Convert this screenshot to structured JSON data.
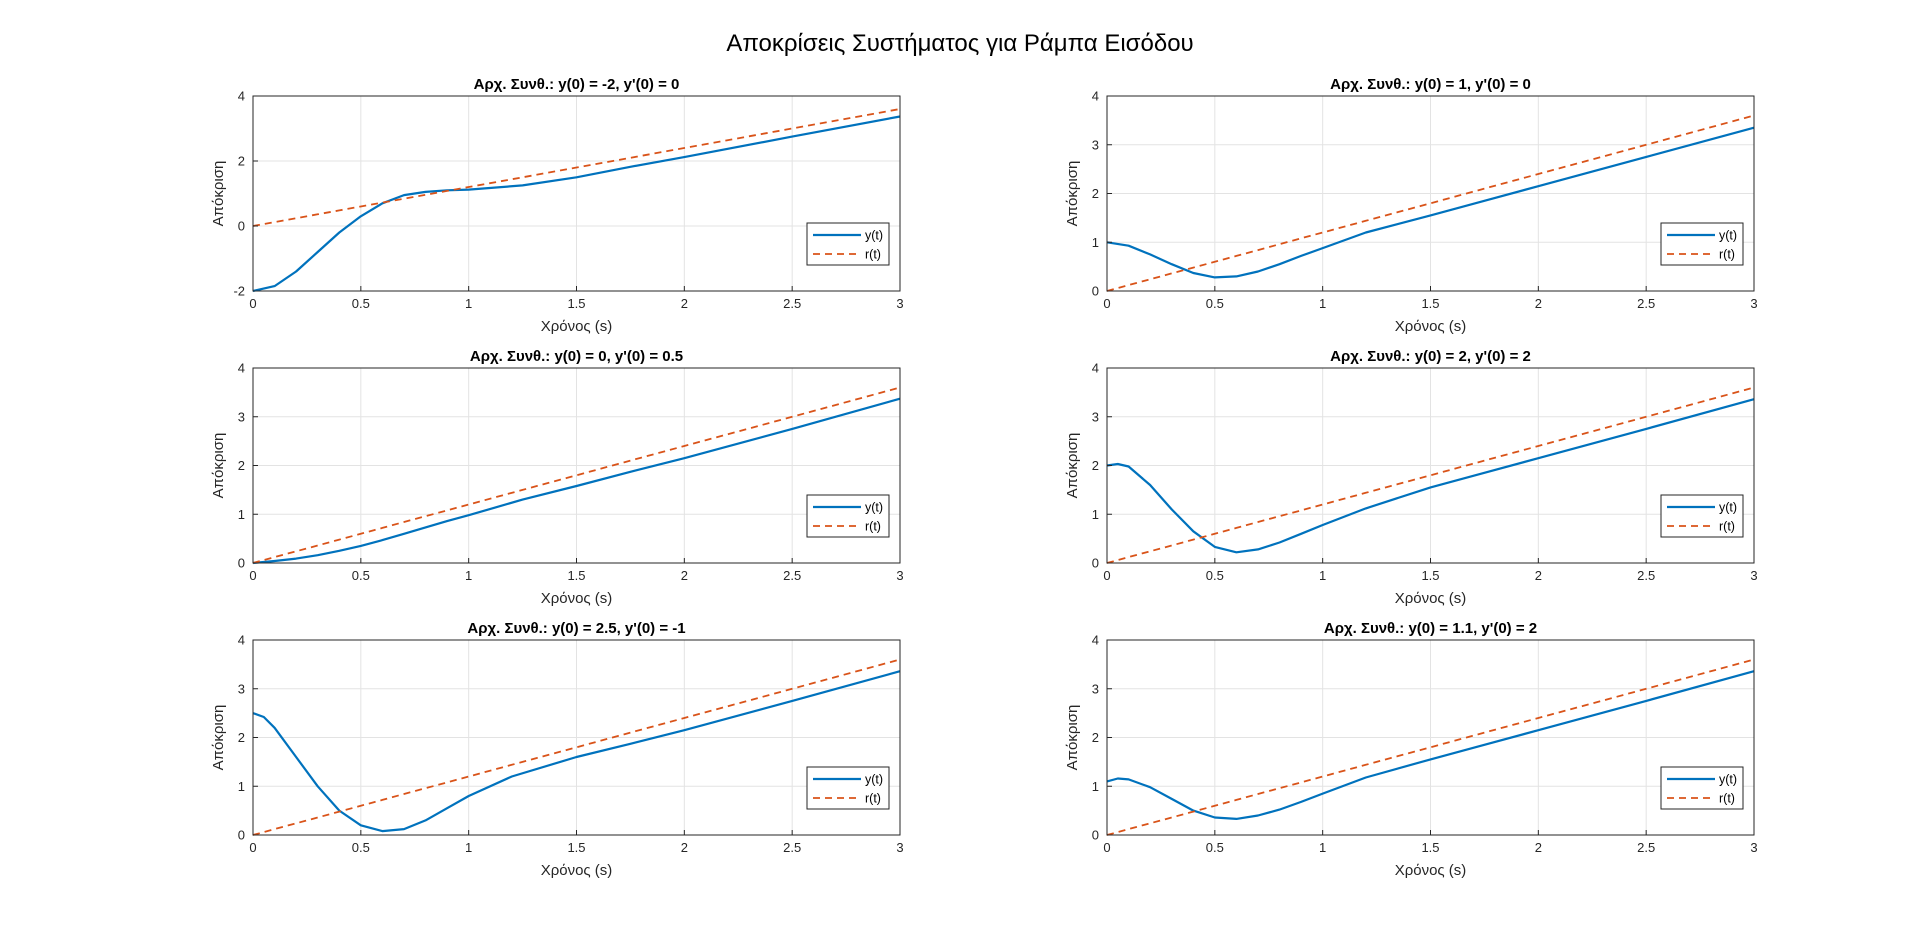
{
  "figure": {
    "title": "Αποκρίσεις Συστήματος για Ράμπα Εισόδου"
  },
  "colors": {
    "y_series": "#0072BD",
    "r_series": "#D95319",
    "grid": "#e3e3e3",
    "axes": "#262626"
  },
  "chart_data": [
    {
      "type": "line",
      "title": "Αρχ. Συνθ.: y(0) = -2, y'(0) = 0",
      "xlabel": "Χρόνος (s)",
      "ylabel": "Απόκριση",
      "xlim": [
        0,
        3
      ],
      "ylim": [
        -2,
        4
      ],
      "xticks": [
        0,
        0.5,
        1,
        1.5,
        2,
        2.5,
        3
      ],
      "xtick_labels": [
        "0",
        "0.5",
        "1",
        "1.5",
        "2",
        "2.5",
        "3"
      ],
      "yticks": [
        -2,
        0,
        2,
        4
      ],
      "ytick_labels": [
        "-2",
        "0",
        "2",
        "4"
      ],
      "grid": true,
      "legend": "lower-right",
      "x": [
        0,
        0.1,
        0.2,
        0.3,
        0.4,
        0.5,
        0.6,
        0.7,
        0.8,
        0.9,
        1.0,
        1.25,
        1.5,
        1.75,
        2.0,
        2.5,
        3.0
      ],
      "series": [
        {
          "name": "y(t)",
          "style": "solid",
          "values": [
            -2.0,
            -1.85,
            -1.4,
            -0.8,
            -0.2,
            0.3,
            0.7,
            0.95,
            1.05,
            1.1,
            1.12,
            1.25,
            1.5,
            1.82,
            2.12,
            2.75,
            3.37
          ]
        },
        {
          "name": "r(t)",
          "style": "dashed",
          "values": [
            0,
            0.12,
            0.24,
            0.36,
            0.48,
            0.6,
            0.72,
            0.84,
            0.96,
            1.08,
            1.2,
            1.5,
            1.8,
            2.1,
            2.4,
            3.0,
            3.6
          ]
        }
      ]
    },
    {
      "type": "line",
      "title": "Αρχ. Συνθ.: y(0) = 1, y'(0) = 0",
      "xlabel": "Χρόνος (s)",
      "ylabel": "Απόκριση",
      "xlim": [
        0,
        3
      ],
      "ylim": [
        0,
        4
      ],
      "xticks": [
        0,
        0.5,
        1,
        1.5,
        2,
        2.5,
        3
      ],
      "xtick_labels": [
        "0",
        "0.5",
        "1",
        "1.5",
        "2",
        "2.5",
        "3"
      ],
      "yticks": [
        0,
        1,
        2,
        3,
        4
      ],
      "ytick_labels": [
        "0",
        "1",
        "2",
        "3",
        "4"
      ],
      "grid": true,
      "legend": "lower-right",
      "x": [
        0,
        0.1,
        0.2,
        0.3,
        0.4,
        0.5,
        0.6,
        0.7,
        0.8,
        0.9,
        1.0,
        1.2,
        1.5,
        1.75,
        2.0,
        2.5,
        3.0
      ],
      "series": [
        {
          "name": "y(t)",
          "style": "solid",
          "values": [
            1.0,
            0.93,
            0.75,
            0.55,
            0.37,
            0.28,
            0.3,
            0.4,
            0.55,
            0.72,
            0.88,
            1.2,
            1.55,
            1.85,
            2.15,
            2.75,
            3.35
          ]
        },
        {
          "name": "r(t)",
          "style": "dashed",
          "values": [
            0,
            0.12,
            0.24,
            0.36,
            0.48,
            0.6,
            0.72,
            0.84,
            0.96,
            1.08,
            1.2,
            1.44,
            1.8,
            2.1,
            2.4,
            3.0,
            3.6
          ]
        }
      ]
    },
    {
      "type": "line",
      "title": "Αρχ. Συνθ.: y(0) = 0, y'(0) = 0.5",
      "xlabel": "Χρόνος (s)",
      "ylabel": "Απόκριση",
      "xlim": [
        0,
        3
      ],
      "ylim": [
        0,
        4
      ],
      "xticks": [
        0,
        0.5,
        1,
        1.5,
        2,
        2.5,
        3
      ],
      "xtick_labels": [
        "0",
        "0.5",
        "1",
        "1.5",
        "2",
        "2.5",
        "3"
      ],
      "yticks": [
        0,
        1,
        2,
        3,
        4
      ],
      "ytick_labels": [
        "0",
        "1",
        "2",
        "3",
        "4"
      ],
      "grid": true,
      "legend": "lower-right",
      "x": [
        0,
        0.1,
        0.2,
        0.3,
        0.4,
        0.5,
        0.6,
        0.7,
        0.8,
        0.9,
        1.0,
        1.25,
        1.5,
        1.75,
        2.0,
        2.5,
        3.0
      ],
      "series": [
        {
          "name": "y(t)",
          "style": "solid",
          "values": [
            0,
            0.04,
            0.09,
            0.16,
            0.25,
            0.35,
            0.47,
            0.6,
            0.73,
            0.86,
            0.98,
            1.3,
            1.58,
            1.87,
            2.15,
            2.75,
            3.37
          ]
        },
        {
          "name": "r(t)",
          "style": "dashed",
          "values": [
            0,
            0.12,
            0.24,
            0.36,
            0.48,
            0.6,
            0.72,
            0.84,
            0.96,
            1.08,
            1.2,
            1.5,
            1.8,
            2.1,
            2.4,
            3.0,
            3.6
          ]
        }
      ]
    },
    {
      "type": "line",
      "title": "Αρχ. Συνθ.: y(0) = 2, y'(0) = 2",
      "xlabel": "Χρόνος (s)",
      "ylabel": "Απόκριση",
      "xlim": [
        0,
        3
      ],
      "ylim": [
        0,
        4
      ],
      "xticks": [
        0,
        0.5,
        1,
        1.5,
        2,
        2.5,
        3
      ],
      "xtick_labels": [
        "0",
        "0.5",
        "1",
        "1.5",
        "2",
        "2.5",
        "3"
      ],
      "yticks": [
        0,
        1,
        2,
        3,
        4
      ],
      "ytick_labels": [
        "0",
        "1",
        "2",
        "3",
        "4"
      ],
      "grid": true,
      "legend": "lower-right",
      "x": [
        0,
        0.05,
        0.1,
        0.2,
        0.3,
        0.4,
        0.5,
        0.6,
        0.7,
        0.8,
        0.9,
        1.0,
        1.2,
        1.5,
        1.75,
        2.0,
        2.5,
        3.0
      ],
      "series": [
        {
          "name": "y(t)",
          "style": "solid",
          "values": [
            2.0,
            2.03,
            1.98,
            1.6,
            1.1,
            0.65,
            0.33,
            0.22,
            0.28,
            0.42,
            0.6,
            0.78,
            1.12,
            1.55,
            1.85,
            2.15,
            2.75,
            3.36
          ]
        },
        {
          "name": "r(t)",
          "style": "dashed",
          "values": [
            0,
            0.06,
            0.12,
            0.24,
            0.36,
            0.48,
            0.6,
            0.72,
            0.84,
            0.96,
            1.08,
            1.2,
            1.44,
            1.8,
            2.1,
            2.4,
            3.0,
            3.6
          ]
        }
      ]
    },
    {
      "type": "line",
      "title": "Αρχ. Συνθ.: y(0) = 2.5, y'(0) = -1",
      "xlabel": "Χρόνος (s)",
      "ylabel": "Απόκριση",
      "xlim": [
        0,
        3
      ],
      "ylim": [
        0,
        4
      ],
      "xticks": [
        0,
        0.5,
        1,
        1.5,
        2,
        2.5,
        3
      ],
      "xtick_labels": [
        "0",
        "0.5",
        "1",
        "1.5",
        "2",
        "2.5",
        "3"
      ],
      "yticks": [
        0,
        1,
        2,
        3,
        4
      ],
      "ytick_labels": [
        "0",
        "1",
        "2",
        "3",
        "4"
      ],
      "grid": true,
      "legend": "lower-right",
      "x": [
        0,
        0.05,
        0.1,
        0.2,
        0.3,
        0.4,
        0.5,
        0.6,
        0.7,
        0.8,
        0.9,
        1.0,
        1.2,
        1.5,
        1.75,
        2.0,
        2.5,
        3.0
      ],
      "series": [
        {
          "name": "y(t)",
          "style": "solid",
          "values": [
            2.5,
            2.42,
            2.2,
            1.6,
            1.0,
            0.5,
            0.2,
            0.08,
            0.12,
            0.3,
            0.55,
            0.8,
            1.2,
            1.6,
            1.87,
            2.15,
            2.75,
            3.36
          ]
        },
        {
          "name": "r(t)",
          "style": "dashed",
          "values": [
            0,
            0.06,
            0.12,
            0.24,
            0.36,
            0.48,
            0.6,
            0.72,
            0.84,
            0.96,
            1.08,
            1.2,
            1.44,
            1.8,
            2.1,
            2.4,
            3.0,
            3.6
          ]
        }
      ]
    },
    {
      "type": "line",
      "title": "Αρχ. Συνθ.: y(0) = 1.1, y'(0) = 2",
      "xlabel": "Χρόνος (s)",
      "ylabel": "Απόκριση",
      "xlim": [
        0,
        3
      ],
      "ylim": [
        0,
        4
      ],
      "xticks": [
        0,
        0.5,
        1,
        1.5,
        2,
        2.5,
        3
      ],
      "xtick_labels": [
        "0",
        "0.5",
        "1",
        "1.5",
        "2",
        "2.5",
        "3"
      ],
      "yticks": [
        0,
        1,
        2,
        3,
        4
      ],
      "ytick_labels": [
        "0",
        "1",
        "2",
        "3",
        "4"
      ],
      "grid": true,
      "legend": "lower-right",
      "x": [
        0,
        0.05,
        0.1,
        0.2,
        0.3,
        0.4,
        0.5,
        0.6,
        0.7,
        0.8,
        0.9,
        1.0,
        1.2,
        1.5,
        1.75,
        2.0,
        2.5,
        3.0
      ],
      "series": [
        {
          "name": "y(t)",
          "style": "solid",
          "values": [
            1.1,
            1.16,
            1.14,
            0.98,
            0.74,
            0.5,
            0.36,
            0.33,
            0.4,
            0.52,
            0.68,
            0.85,
            1.18,
            1.55,
            1.85,
            2.15,
            2.75,
            3.36
          ]
        },
        {
          "name": "r(t)",
          "style": "dashed",
          "values": [
            0,
            0.06,
            0.12,
            0.24,
            0.36,
            0.48,
            0.6,
            0.72,
            0.84,
            0.96,
            1.08,
            1.2,
            1.44,
            1.8,
            2.1,
            2.4,
            3.0,
            3.6
          ]
        }
      ]
    }
  ]
}
